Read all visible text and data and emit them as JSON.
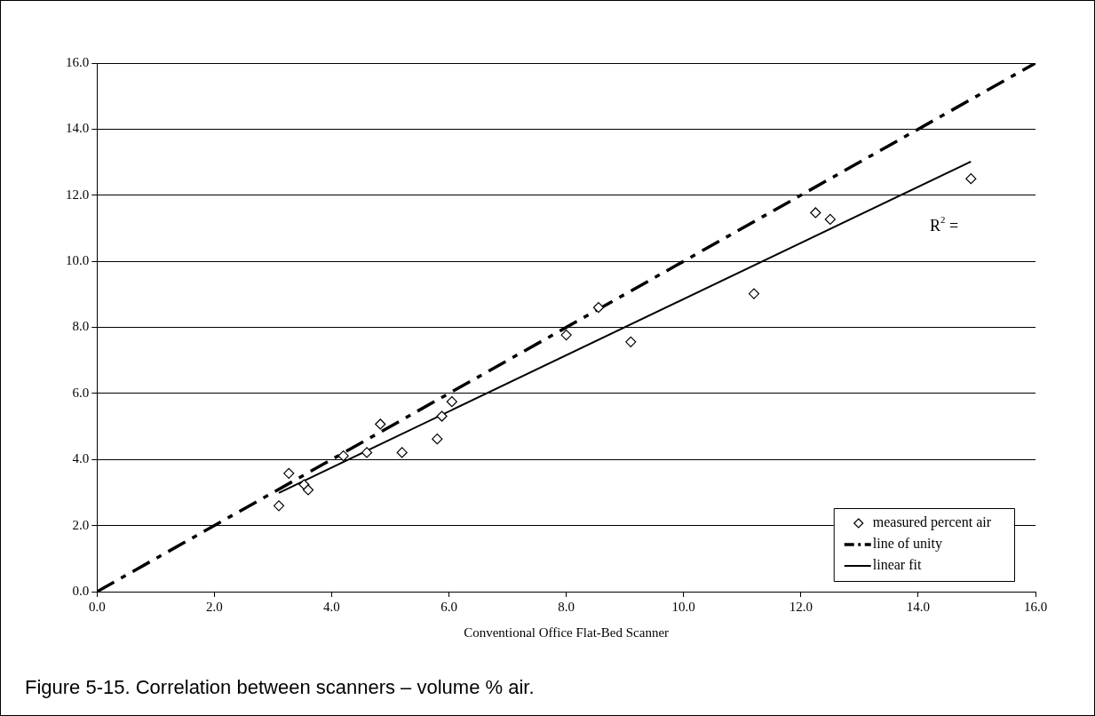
{
  "chart_data": {
    "type": "scatter",
    "xlabel": "Conventional Office Flat-Bed Scanner",
    "xlim": [
      0,
      16
    ],
    "ylim": [
      0,
      16
    ],
    "xticks": [
      {
        "value": 0,
        "label": "0.0"
      },
      {
        "value": 2,
        "label": "2.0"
      },
      {
        "value": 4,
        "label": "4.0"
      },
      {
        "value": 6,
        "label": "6.0"
      },
      {
        "value": 8,
        "label": "8.0"
      },
      {
        "value": 10,
        "label": "10.0"
      },
      {
        "value": 12,
        "label": "12.0"
      },
      {
        "value": 14,
        "label": "14.0"
      },
      {
        "value": 16,
        "label": "16.0"
      }
    ],
    "yticks": [
      {
        "value": 0,
        "label": "0.0"
      },
      {
        "value": 2,
        "label": "2.0"
      },
      {
        "value": 4,
        "label": "4.0"
      },
      {
        "value": 6,
        "label": "6.0"
      },
      {
        "value": 8,
        "label": "8.0"
      },
      {
        "value": 10,
        "label": "10.0"
      },
      {
        "value": 12,
        "label": "12.0"
      },
      {
        "value": 14,
        "label": "14.0"
      },
      {
        "value": 16,
        "label": "16.0"
      }
    ],
    "grid": "y",
    "legend": "bottom right",
    "marker": "diamond",
    "series": [
      {
        "name": "measured percent air",
        "color": "#000000",
        "x": [
          3.1,
          3.27,
          3.53,
          3.6,
          4.2,
          4.6,
          4.83,
          5.2,
          5.8,
          5.88,
          6.05,
          8.0,
          8.55,
          9.1,
          11.2,
          12.25,
          12.5,
          14.9
        ],
        "values": [
          2.6,
          3.58,
          3.24,
          3.08,
          4.11,
          4.21,
          5.07,
          4.21,
          4.62,
          5.31,
          5.75,
          7.77,
          8.6,
          7.56,
          9.02,
          11.47,
          11.27,
          12.5
        ]
      },
      {
        "name": "line of unity",
        "type": "line",
        "color": "#000000",
        "line_style": "dashed",
        "marker": "none",
        "x": [
          0,
          16
        ],
        "values": [
          0,
          16
        ]
      },
      {
        "name": "linear fit",
        "type": "line",
        "color": "#000000",
        "line_style": "solid",
        "marker": "none",
        "x": [
          3.1,
          14.9
        ],
        "values": [
          2.99,
          13.02
        ]
      }
    ],
    "annotations": [
      "R$^{2}$ =",
      "Figure 5-15. Correlation between scanners – volume % air."
    ]
  }
}
